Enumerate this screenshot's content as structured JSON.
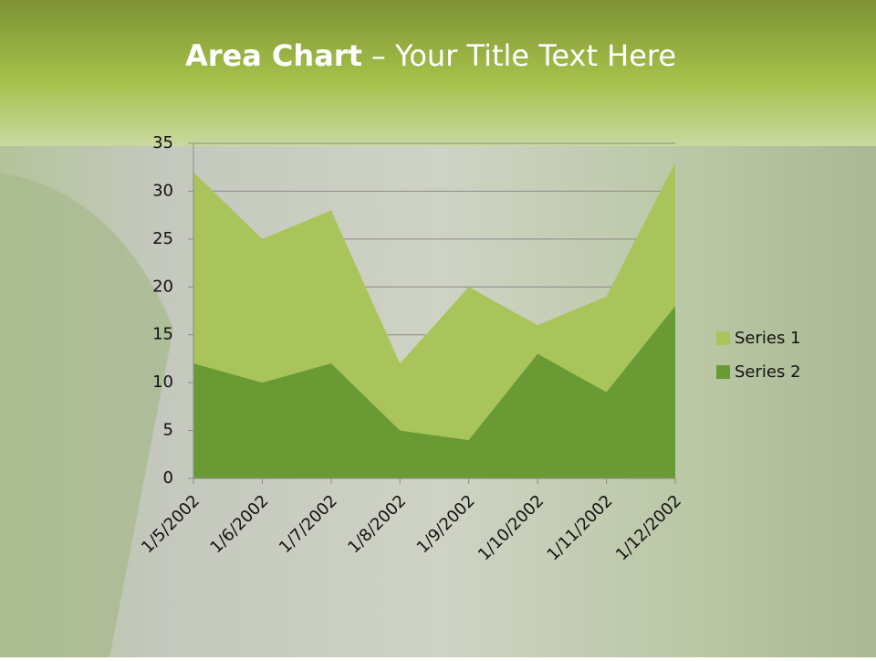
{
  "title_bold": "Area Chart",
  "title_rest": "– Your Title Text Here",
  "chart_data": {
    "type": "area",
    "categories": [
      "1/5/2002",
      "1/6/2002",
      "1/7/2002",
      "1/8/2002",
      "1/9/2002",
      "1/10/2002",
      "1/11/2002",
      "1/12/2002"
    ],
    "series": [
      {
        "name": "Series 1",
        "color": "#a8c45a",
        "values": [
          32,
          25,
          28,
          12,
          20,
          16,
          19,
          33
        ]
      },
      {
        "name": "Series 2",
        "color": "#6a9a34",
        "values": [
          12,
          10,
          12,
          5,
          4,
          13,
          9,
          18
        ]
      }
    ],
    "ylim": [
      0,
      35
    ],
    "yticks": [
      0,
      5,
      10,
      15,
      20,
      25,
      30,
      35
    ],
    "grid": true,
    "legend": "right"
  }
}
